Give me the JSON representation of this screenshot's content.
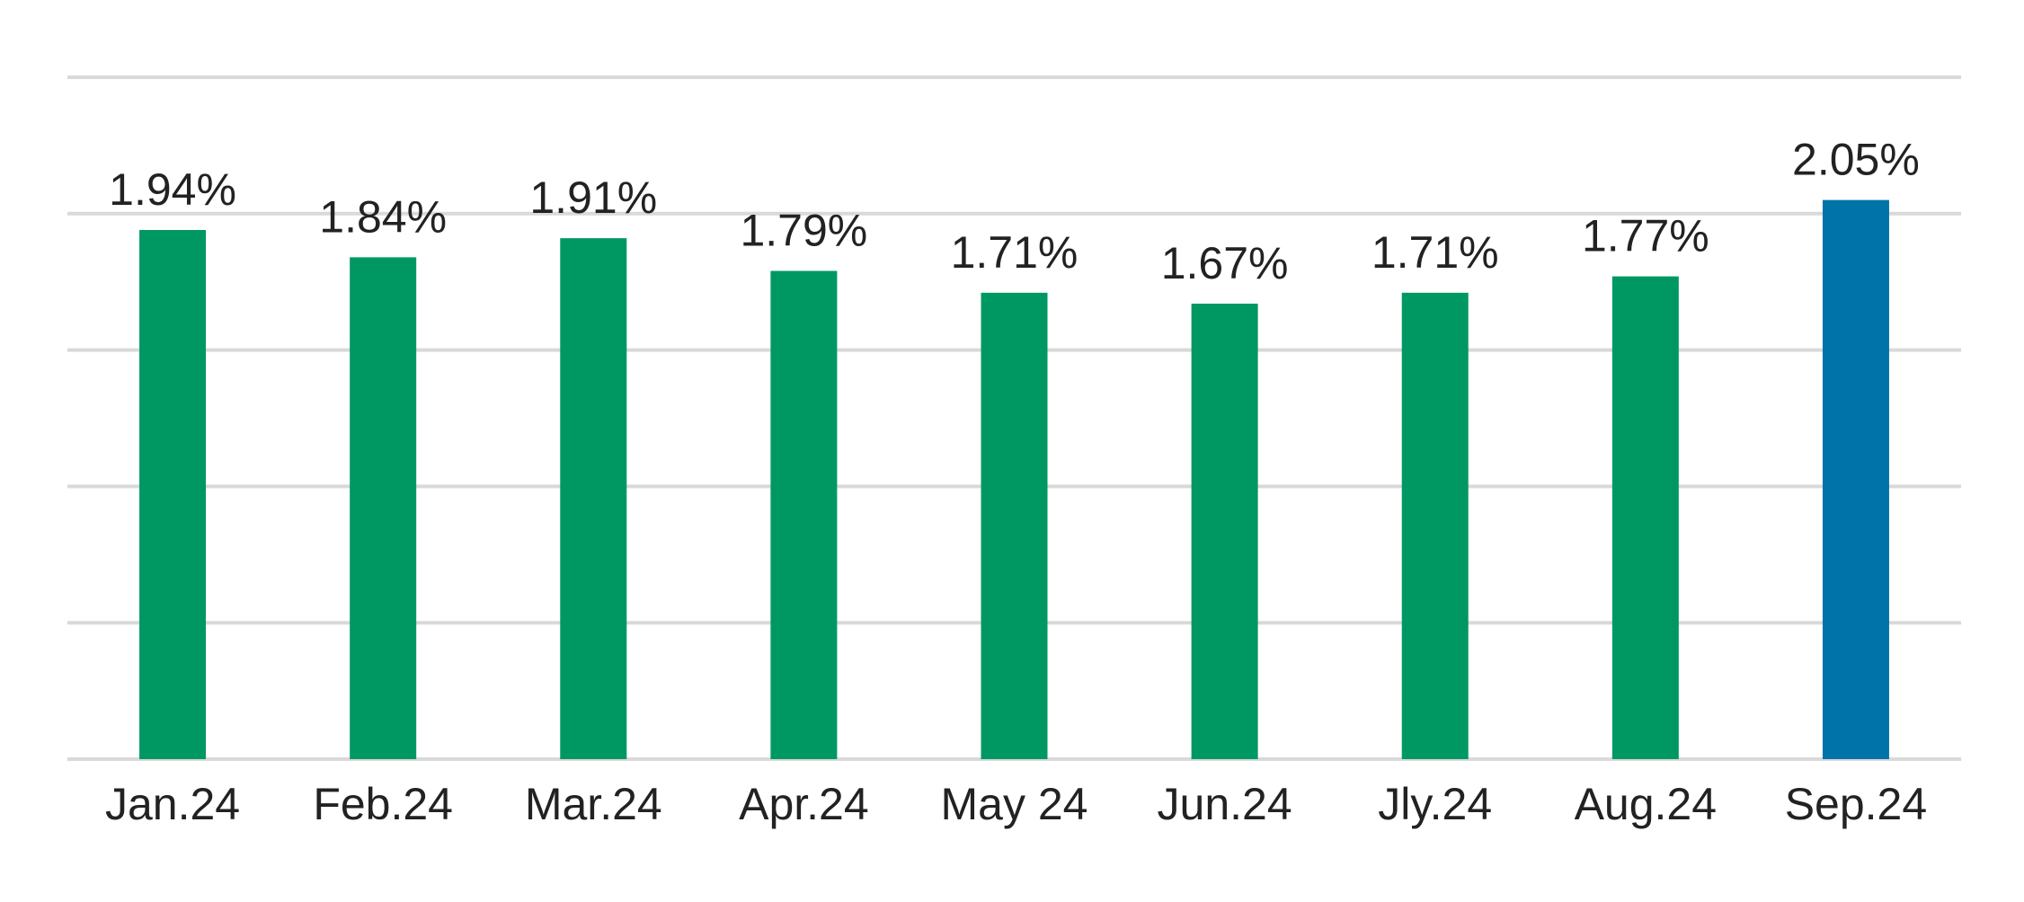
{
  "chart_data": {
    "type": "bar",
    "title": "",
    "xlabel": "",
    "ylabel": "",
    "categories": [
      "Jan.24",
      "Feb.24",
      "Mar.24",
      "Apr.24",
      "May 24",
      "Jun.24",
      "Jly.24",
      "Aug.24",
      "Sep.24"
    ],
    "values": [
      1.94,
      1.84,
      1.91,
      1.79,
      1.71,
      1.67,
      1.71,
      1.77,
      2.05
    ],
    "value_labels": [
      "1.94%",
      "1.84%",
      "1.91%",
      "1.79%",
      "1.71%",
      "1.67%",
      "1.71%",
      "1.77%",
      "2.05%"
    ],
    "ylim": [
      0,
      2.5
    ],
    "y_gridlines": [
      0,
      0.5,
      1.0,
      1.5,
      2.0,
      2.5
    ],
    "y_tick_labels_shown": false,
    "grid": true,
    "legend": "none",
    "colors": {
      "default_bar": "#009862",
      "highlight_bar": "#0073a8",
      "gridline": "#d9d9d9",
      "text": "#222222"
    },
    "highlight_index": 8
  }
}
